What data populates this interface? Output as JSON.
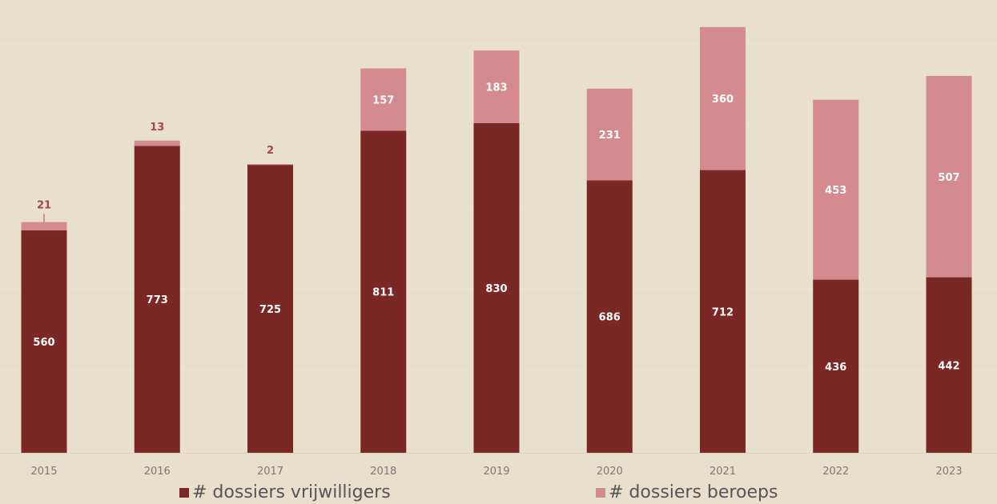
{
  "chart_data": {
    "type": "bar",
    "stacked": true,
    "categories": [
      "2015",
      "2016",
      "2017",
      "2018",
      "2019",
      "2020",
      "2021",
      "2022",
      "2023"
    ],
    "series": [
      {
        "name": "# dossiers vrijwilligers",
        "color": "#7b2725",
        "label_color": "#ffffff",
        "values": [
          560,
          773,
          725,
          811,
          830,
          686,
          712,
          436,
          442
        ]
      },
      {
        "name": "# dossiers beroeps",
        "color": "#d38b8f",
        "label_color": "#ffffff",
        "values": [
          21,
          13,
          2,
          157,
          183,
          231,
          360,
          453,
          507
        ]
      }
    ],
    "ylim": [
      0,
      1080
    ],
    "grid": true,
    "legend_position": "bottom"
  },
  "legend": {
    "item1": "# dossiers vrijwilligers",
    "item2": "# dossiers beroeps"
  }
}
